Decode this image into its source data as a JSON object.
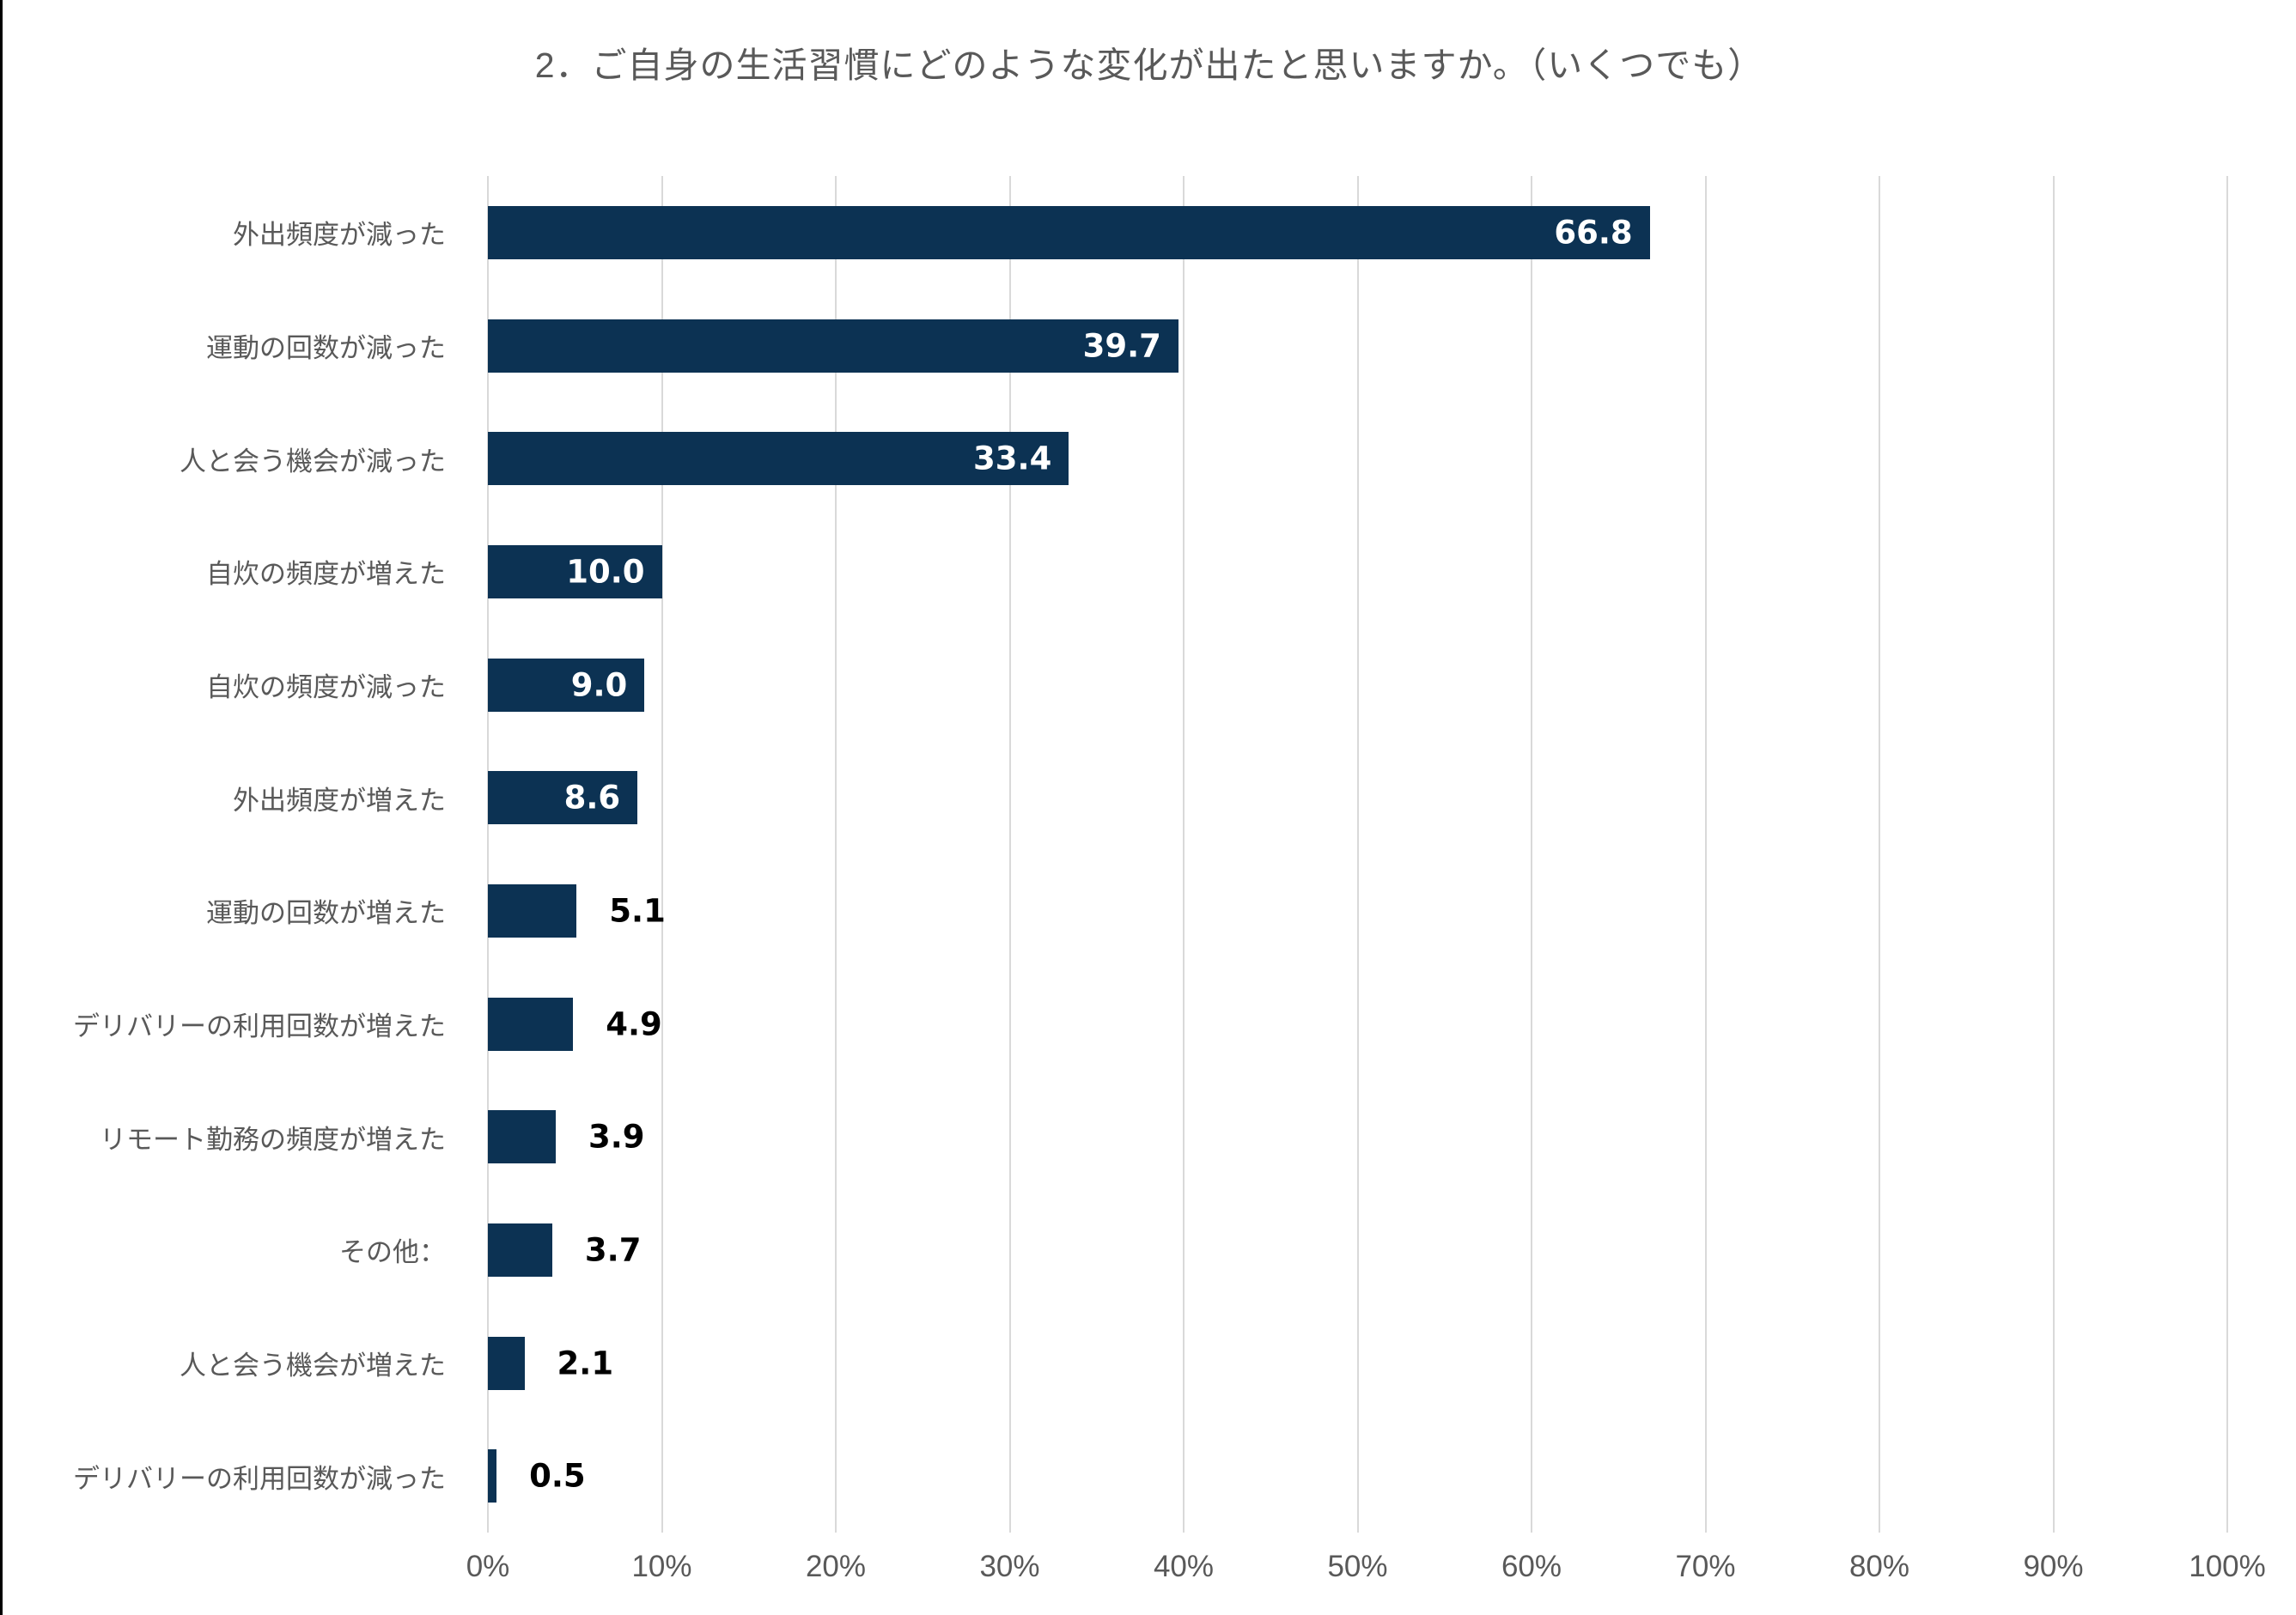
{
  "page": {
    "background": "#ffffff",
    "left_border_color": "#000000"
  },
  "chart_data": {
    "type": "bar",
    "orientation": "horizontal",
    "title": "2．ご自身の生活習慣にどのような変化が出たと思いますか。（いくつでも）",
    "categories": [
      "外出頻度が減った",
      "運動の回数が減った",
      "人と会う機会が減った",
      "自炊の頻度が増えた",
      "自炊の頻度が減った",
      "外出頻度が増えた",
      "運動の回数が増えた",
      "デリバリーの利用回数が増えた",
      "リモート勤務の頻度が増えた",
      "その他：",
      "人と会う機会が増えた",
      "デリバリーの利用回数が減った"
    ],
    "values": [
      66.8,
      39.7,
      33.4,
      10.0,
      9.0,
      8.6,
      5.1,
      4.9,
      3.9,
      3.7,
      2.1,
      0.5
    ],
    "value_labels": [
      "66.8",
      "39.7",
      "33.4",
      "10.0",
      "9.0",
      "8.6",
      "5.1",
      "4.9",
      "3.9",
      "3.7",
      "2.1",
      "0.5"
    ],
    "xlabel": "",
    "ylabel": "",
    "xlim": [
      0,
      100
    ],
    "x_ticks": [
      "0%",
      "10%",
      "20%",
      "30%",
      "40%",
      "50%",
      "60%",
      "70%",
      "80%",
      "90%",
      "100%"
    ],
    "grid": true,
    "legend": "none",
    "bar_color": "#0c3253",
    "gridline_color": "#d9d9d9",
    "category_label_color": "#595959",
    "tick_label_color": "#595959",
    "title_color": "#595959",
    "inside_value_color": "#ffffff",
    "outside_value_color": "#000000",
    "inside_label_threshold": 8
  }
}
